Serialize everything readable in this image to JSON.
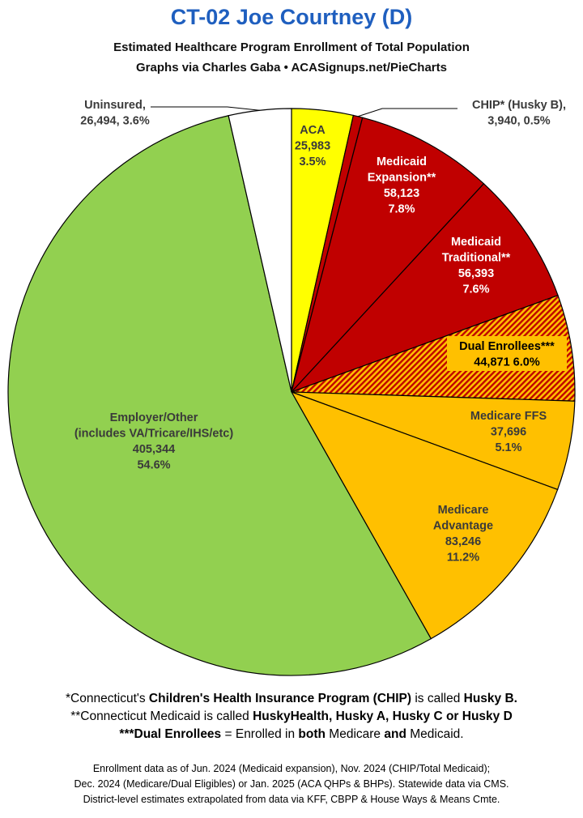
{
  "title": "CT-02 Joe Courtney (D)",
  "subtitle_line1": "Estimated Healthcare Program Enrollment of Total Population",
  "subtitle_line2": "Graphs via Charles Gaba  •  ACASignups.net/PieCharts",
  "chart_data": {
    "type": "pie",
    "slices": [
      {
        "label": "ACA",
        "value": 25983,
        "percent": "3.5%",
        "color": "#ffff00",
        "text_color": "#3a3a3a",
        "lines": [
          "ACA",
          "25,983",
          "3.5%"
        ]
      },
      {
        "label": "CHIP* (Husky B),",
        "value": 3940,
        "percent": "0.5%",
        "color": "#c00000",
        "text_color": "#3a3a3a",
        "lines": [
          "CHIP* (Husky B),",
          "3,940, 0.5%"
        ]
      },
      {
        "label": "Medicaid Expansion**",
        "value": 58123,
        "percent": "7.8%",
        "color": "#c00000",
        "text_color": "#ffffff",
        "lines": [
          "Medicaid",
          "Expansion**",
          "58,123",
          "7.8%"
        ]
      },
      {
        "label": "Medicaid Traditional**",
        "value": 56393,
        "percent": "7.6%",
        "color": "#c00000",
        "text_color": "#ffffff",
        "lines": [
          "Medicaid",
          "Traditional**",
          "56,393",
          "7.6%"
        ]
      },
      {
        "label": "Dual Enrollees***",
        "value": 44871,
        "percent": "6.0%",
        "color": "#c00000",
        "pattern": "hatch",
        "text_color": "#000000",
        "lines": [
          "Dual Enrollees***",
          "44,871 6.0%"
        ]
      },
      {
        "label": "Medicare FFS",
        "value": 37696,
        "percent": "5.1%",
        "color": "#ffc000",
        "text_color": "#3a3a3a",
        "lines": [
          "Medicare FFS",
          "37,696",
          "5.1%"
        ]
      },
      {
        "label": "Medicare Advantage",
        "value": 83246,
        "percent": "11.2%",
        "color": "#ffc000",
        "text_color": "#3a3a3a",
        "lines": [
          "Medicare",
          "Advantage",
          "83,246",
          "11.2%"
        ]
      },
      {
        "label": "Employer/Other (includes VA/Tricare/IHS/etc)",
        "value": 405344,
        "percent": "54.6%",
        "color": "#92d050",
        "text_color": "#3a3a3a",
        "lines": [
          "Employer/Other",
          "(includes VA/Tricare/IHS/etc)",
          "405,344",
          "54.6%"
        ]
      },
      {
        "label": "Uninsured,",
        "value": 26494,
        "percent": "3.6%",
        "color": "#ffffff",
        "text_color": "#3a3a3a",
        "lines": [
          "Uninsured,",
          "26,494, 3.6%"
        ]
      }
    ]
  },
  "notes": {
    "line1": [
      {
        "t": "*Connecticut's ",
        "b": false
      },
      {
        "t": "Children's Health Insurance Program (CHIP)",
        "b": true
      },
      {
        "t": " is called ",
        "b": false
      },
      {
        "t": "Husky B.",
        "b": true
      }
    ],
    "line2": [
      {
        "t": "**Connecticut Medicaid is called ",
        "b": false
      },
      {
        "t": "HuskyHealth, Husky A, Husky C or Husky D",
        "b": true
      }
    ],
    "line3": [
      {
        "t": "***Dual Enrollees",
        "b": true
      },
      {
        "t": " = Enrolled in ",
        "b": false
      },
      {
        "t": "both",
        "b": true
      },
      {
        "t": " Medicare ",
        "b": false
      },
      {
        "t": "and",
        "b": true
      },
      {
        "t": " Medicaid.",
        "b": false
      }
    ]
  },
  "source": {
    "line1": "Enrollment data as of Jun. 2024 (Medicaid expansion), Nov. 2024 (CHIP/Total Medicaid);",
    "line2": "Dec. 2024 (Medicare/Dual Eligibles) or Jan. 2025 (ACA QHPs & BHPs). Statewide data via CMS.",
    "line3": "District-level estimates extrapolated from data via KFF, CBPP & House Ways & Means Cmte."
  }
}
